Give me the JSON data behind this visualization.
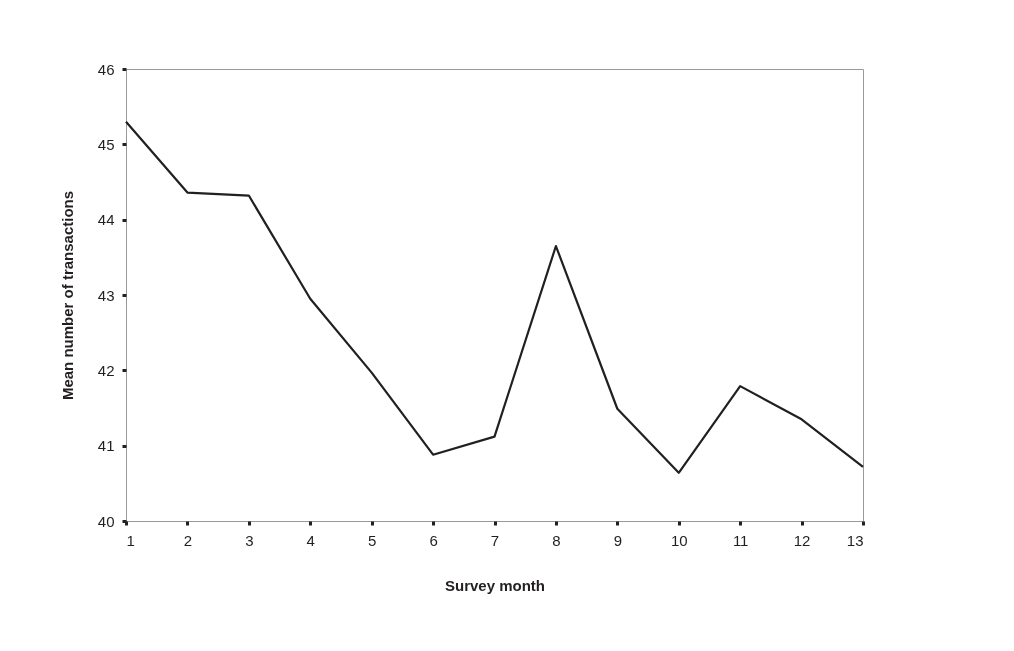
{
  "chart_data": {
    "type": "line",
    "xlabel": "Survey month",
    "ylabel": "Mean number of transactions",
    "x": [
      1,
      2,
      3,
      4,
      5,
      6,
      7,
      8,
      9,
      10,
      11,
      12,
      13
    ],
    "series": [
      {
        "color": "#231f20",
        "values": [
          45.3,
          44.36,
          44.32,
          42.95,
          41.97,
          40.88,
          41.12,
          43.65,
          41.49,
          40.64,
          41.79,
          41.35,
          40.72
        ]
      }
    ],
    "xlim": [
      1,
      13
    ],
    "xticks": [
      1,
      2,
      3,
      4,
      5,
      6,
      7,
      8,
      9,
      10,
      11,
      12,
      13
    ],
    "ylim": [
      40,
      46
    ],
    "yticks": [
      40,
      41,
      42,
      43,
      44,
      45,
      46
    ],
    "grid": false,
    "marker": "none",
    "line_style": "solid"
  }
}
